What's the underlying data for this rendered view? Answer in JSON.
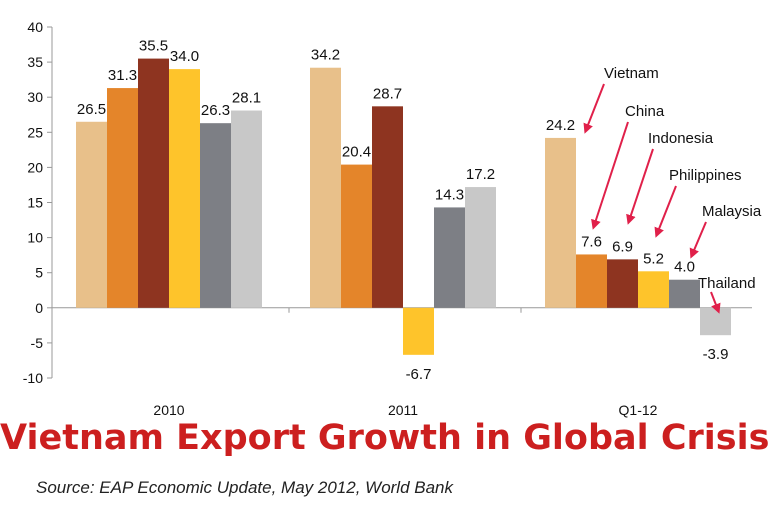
{
  "title": "Vietnam Export Growth in Global Crisis",
  "source": "Source: EAP Economic Update, May 2012, World Bank",
  "colors": {
    "title": "#cc1f1f",
    "arrow": "#e0204a",
    "axis": "#999999"
  },
  "chart_data": {
    "type": "bar",
    "categories": [
      "2010",
      "2011",
      "Q1-12"
    ],
    "series": [
      {
        "name": "Vietnam",
        "values": [
          26.5,
          34.2,
          24.2
        ],
        "color": "#e8c08a"
      },
      {
        "name": "China",
        "values": [
          31.3,
          20.4,
          7.6
        ],
        "color": "#e4852a"
      },
      {
        "name": "Indonesia",
        "values": [
          35.5,
          28.7,
          6.9
        ],
        "color": "#8e3420"
      },
      {
        "name": "Philippines",
        "values": [
          34.0,
          -6.7,
          5.2
        ],
        "color": "#fec42b"
      },
      {
        "name": "Malaysia",
        "values": [
          26.3,
          14.3,
          4.0
        ],
        "color": "#7d7f85"
      },
      {
        "name": "Thailand",
        "values": [
          28.1,
          17.2,
          -3.9
        ],
        "color": "#c8c8c8"
      }
    ],
    "data_labels": [
      [
        "26.5",
        "34.2",
        "24.2"
      ],
      [
        "31.3",
        "20.4",
        "7.6"
      ],
      [
        "35.5",
        "28.7",
        "6.9"
      ],
      [
        "34.0",
        "-6.7",
        "5.2"
      ],
      [
        "26.3",
        "14.3",
        "4.0"
      ],
      [
        "28.1",
        "17.2",
        "-3.9"
      ]
    ],
    "y_ticks": [
      "40",
      "35",
      "30",
      "25",
      "20",
      "15",
      "10",
      "5",
      "0",
      "-5",
      "-10"
    ],
    "ylim": [
      -10,
      40
    ],
    "grid": false,
    "legend": "none",
    "annotations": [
      {
        "text": "Vietnam",
        "series": 0,
        "category": 2
      },
      {
        "text": "China",
        "series": 1,
        "category": 2
      },
      {
        "text": "Indonesia",
        "series": 2,
        "category": 2
      },
      {
        "text": "Philippines",
        "series": 3,
        "category": 2
      },
      {
        "text": "Malaysia",
        "series": 4,
        "category": 2
      },
      {
        "text": "Thailand",
        "series": 5,
        "category": 2
      }
    ]
  }
}
